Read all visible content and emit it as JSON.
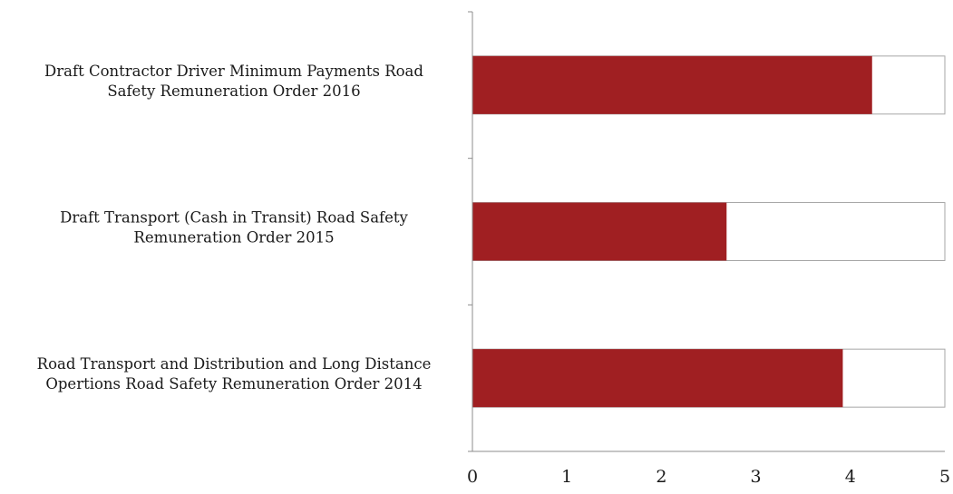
{
  "chart_data": {
    "type": "bar",
    "orientation": "horizontal",
    "categories": [
      [
        "Draft Contractor Driver Minimum Payments Road",
        "Safety Remuneration Order 2016"
      ],
      [
        "Draft Transport (Cash in Transit) Road Safety",
        "Remuneration Order 2015"
      ],
      [
        "Road Transport and Distribution and Long Distance",
        "Opertions Road Safety Remuneration Order 2014"
      ]
    ],
    "values": [
      4.23,
      2.69,
      3.92
    ],
    "max_values": [
      5,
      5,
      5
    ],
    "xlim": [
      0,
      5
    ],
    "xticks": [
      "0",
      "1",
      "2",
      "3",
      "4",
      "5"
    ],
    "title": "",
    "xlabel": "",
    "ylabel": "",
    "grid": false,
    "colors": {
      "bar": "#a01f22",
      "background_bar": "#ffffff",
      "axis": "#8c8c8c"
    }
  }
}
